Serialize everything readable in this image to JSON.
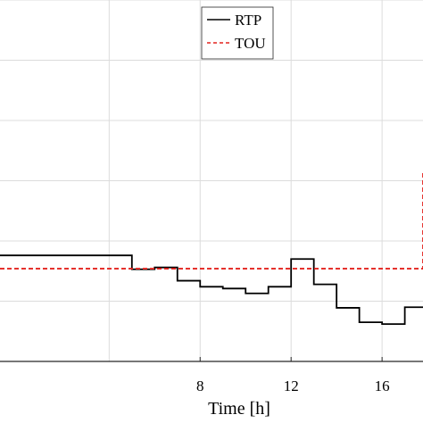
{
  "chart_data": {
    "type": "line",
    "xlabel": "Time [h]",
    "xlim": [
      -0.8,
      17.8
    ],
    "ylim": [
      0,
      6
    ],
    "x_ticks": [
      8,
      12,
      16
    ],
    "x_tick_labels": [
      "8",
      "12",
      "16"
    ],
    "grid": true,
    "legend_position": "top-center",
    "series": [
      {
        "name": "RTP",
        "style": "solid-step",
        "color": "#000000",
        "x": [
          -0.8,
          4.1,
          5.0,
          6.0,
          7.0,
          8.0,
          9.0,
          10.0,
          11.0,
          12.0,
          13.0,
          14.0,
          15.0,
          16.0,
          17.0,
          17.8
        ],
        "y": [
          1.76,
          1.76,
          1.53,
          1.56,
          1.34,
          1.24,
          1.21,
          1.13,
          1.24,
          1.7,
          1.28,
          0.89,
          0.65,
          0.62,
          0.9,
          0.9
        ]
      },
      {
        "name": "TOU",
        "style": "dashed-step",
        "color": "#e3231e",
        "x": [
          -0.8,
          17.8,
          17.8
        ],
        "y": [
          1.54,
          1.54,
          3.15
        ]
      }
    ]
  }
}
